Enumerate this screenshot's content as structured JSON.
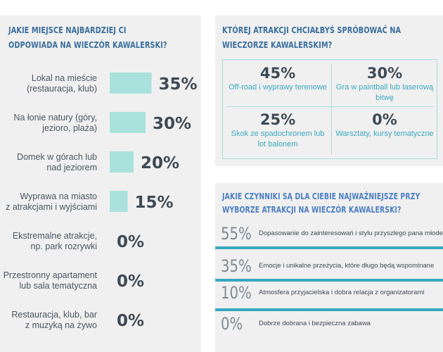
{
  "panel_left": {
    "title": [
      "JAKIE MIEJSCE NAJBARDZIEJ CI",
      "ODPOWIADA NA WIECZÓR KAWALERSKI?"
    ]
  },
  "panel_top_right": {
    "title": [
      "KTÓREJ ATRAKCJI CHCIAŁBYŚ SPRÓBOWAĆ NA",
      "WIECZORZE KAWALERSKIM?"
    ]
  },
  "panel_bottom_right": {
    "title": [
      "JAKIE CZYNNIKI SĄ DLA CIEBIE NAJWAŻNIEJSZE PRZY",
      "WYBORZE ATRAKCJI NA WIECZÓR KAWALERSKI?"
    ]
  },
  "colors": {
    "panel_bg": "#f0f0f0",
    "bar": "#a9e2dc",
    "title": "#3a6e9c",
    "accent": "#3aa8c0",
    "value_text": "#3e4a54"
  },
  "chart_data": [
    {
      "type": "bar",
      "orientation": "horizontal",
      "title": "JAKIE MIEJSCE NAJBARDZIEJ CI ODPOWIADA NA WIECZÓR KAWALERSKI?",
      "categories": [
        [
          "Lokal na mieście",
          "(restauracja, klub)"
        ],
        [
          "Na łonie natury (góry,",
          "jezioro, plaża)"
        ],
        [
          "Domek w górach lub",
          "nad jeziorem"
        ],
        [
          "Wyprawa na miasto",
          "z atrakcjami i wyjściami"
        ],
        [
          "Ekstremalne atrakcje,",
          "np. park rozrywki"
        ],
        [
          "Przestronny apartament",
          "lub sala tematyczna"
        ],
        [
          "Restauracja, klub, bar",
          "z muzyką na żywo"
        ]
      ],
      "values": [
        35,
        30,
        20,
        15,
        0,
        0,
        0
      ],
      "value_labels": [
        "35%",
        "30%",
        "20%",
        "15%",
        "0%",
        "0%",
        "0%"
      ],
      "unit": "%"
    },
    {
      "type": "table",
      "title": "KTÓREJ ATRAKCJI CHCIAŁBYŚ SPRÓBOWAĆ NA WIECZORZE KAWALERSKIM?",
      "cells": [
        {
          "value": "45%",
          "label": "Off-road i wyprawy terenowe"
        },
        {
          "value": "30%",
          "label": "Gra w paintball lub laserową bitwę"
        },
        {
          "value": "25%",
          "label": "Skok ze spadochronem lub lot balonem"
        },
        {
          "value": "0%",
          "label": "Warsztaty, kursy tematyczne"
        }
      ]
    },
    {
      "type": "table",
      "title": "JAKIE CZYNNIKI SĄ DLA CIEBIE NAJWAŻNIEJSZE PRZY WYBORZE ATRAKCJI NA WIECZÓR KAWALERSKI?",
      "rows": [
        {
          "value": "55%",
          "label": "Dopasowanie do zainteresowań i stylu przyszłego pana młodego"
        },
        {
          "value": "35%",
          "label": "Emocje i unikalne przeżycia, które długo będą wspominane"
        },
        {
          "value": "10%",
          "label": "Atmosfera przyjacielska i dobra relacja z organizatorami"
        },
        {
          "value": "0%",
          "label": "Dobrze dobrana i bezpieczna zabawa"
        }
      ]
    }
  ]
}
